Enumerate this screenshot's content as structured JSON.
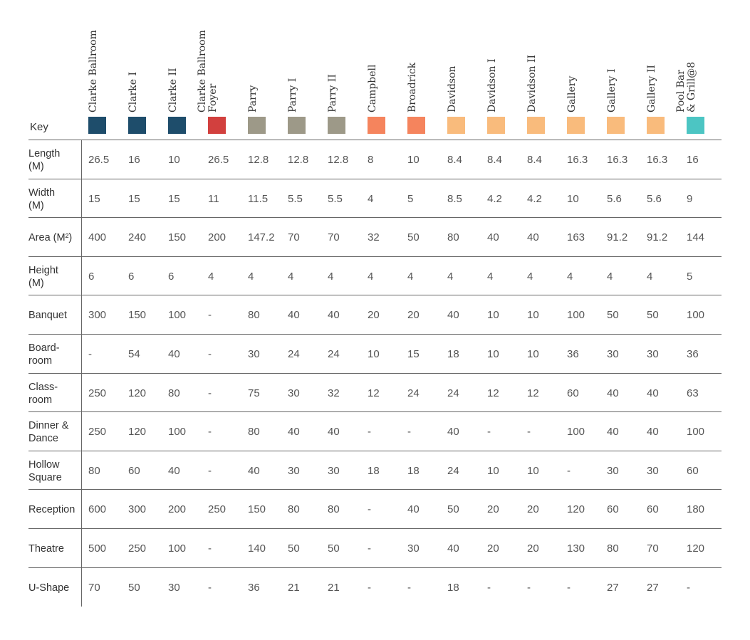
{
  "table": {
    "key_label": "Key",
    "columns": [
      {
        "name": "Clarke Ballroom",
        "color": "#1e4d6b"
      },
      {
        "name": "Clarke I",
        "color": "#1e4d6b"
      },
      {
        "name": "Clarke II",
        "color": "#1e4d6b"
      },
      {
        "name": "Clarke Ballroom\nFoyer",
        "color": "#d2403e"
      },
      {
        "name": "Parry",
        "color": "#9d9988"
      },
      {
        "name": "Parry I",
        "color": "#9d9988"
      },
      {
        "name": "Parry II",
        "color": "#9d9988"
      },
      {
        "name": "Campbell",
        "color": "#f5845d"
      },
      {
        "name": "Broadrick",
        "color": "#f5845d"
      },
      {
        "name": "Davidson",
        "color": "#f9bb7c"
      },
      {
        "name": "Davidson I",
        "color": "#f9bb7c"
      },
      {
        "name": "Davidson II",
        "color": "#f9bb7c"
      },
      {
        "name": "Gallery",
        "color": "#f9bb7c"
      },
      {
        "name": "Gallery I",
        "color": "#f9bb7c"
      },
      {
        "name": "Gallery II",
        "color": "#f9bb7c"
      },
      {
        "name": "Pool Bar\n& Grill@8",
        "color": "#4cc5c3"
      }
    ],
    "rows": [
      {
        "label": "Length\n(M)",
        "values": [
          "26.5",
          "16",
          "10",
          "26.5",
          "12.8",
          "12.8",
          "12.8",
          "8",
          "10",
          "8.4",
          "8.4",
          "8.4",
          "16.3",
          "16.3",
          "16.3",
          "16"
        ]
      },
      {
        "label": "Width\n(M)",
        "values": [
          "15",
          "15",
          "15",
          "11",
          "11.5",
          "5.5",
          "5.5",
          "4",
          "5",
          "8.5",
          "4.2",
          "4.2",
          "10",
          "5.6",
          "5.6",
          "9"
        ]
      },
      {
        "label": "Area (M²)",
        "values": [
          "400",
          "240",
          "150",
          "200",
          "147.2",
          "70",
          "70",
          "32",
          "50",
          "80",
          "40",
          "40",
          "163",
          "91.2",
          "91.2",
          "144"
        ]
      },
      {
        "label": "Height\n(M)",
        "values": [
          "6",
          "6",
          "6",
          "4",
          "4",
          "4",
          "4",
          "4",
          "4",
          "4",
          "4",
          "4",
          "4",
          "4",
          "4",
          "5"
        ]
      },
      {
        "label": "Banquet",
        "values": [
          "300",
          "150",
          "100",
          "-",
          "80",
          "40",
          "40",
          "20",
          "20",
          "40",
          "10",
          "10",
          "100",
          "50",
          "50",
          "100"
        ]
      },
      {
        "label": "Board-\nroom",
        "values": [
          "-",
          "54",
          "40",
          "-",
          "30",
          "24",
          "24",
          "10",
          "15",
          "18",
          "10",
          "10",
          "36",
          "30",
          "30",
          "36"
        ]
      },
      {
        "label": "Class-\nroom",
        "values": [
          "250",
          "120",
          "80",
          "-",
          "75",
          "30",
          "32",
          "12",
          "24",
          "24",
          "12",
          "12",
          "60",
          "40",
          "40",
          "63"
        ]
      },
      {
        "label": "Dinner &\nDance",
        "values": [
          "250",
          "120",
          "100",
          "-",
          "80",
          "40",
          "40",
          "-",
          "-",
          "40",
          "-",
          "-",
          "100",
          "40",
          "40",
          "100"
        ]
      },
      {
        "label": "Hollow\nSquare",
        "values": [
          "80",
          "60",
          "40",
          "-",
          "40",
          "30",
          "30",
          "18",
          "18",
          "24",
          "10",
          "10",
          "-",
          "30",
          "30",
          "60"
        ]
      },
      {
        "label": "Reception",
        "values": [
          "600",
          "300",
          "200",
          "250",
          "150",
          "80",
          "80",
          "-",
          "40",
          "50",
          "20",
          "20",
          "120",
          "60",
          "60",
          "180"
        ]
      },
      {
        "label": "Theatre",
        "values": [
          "500",
          "250",
          "100",
          "-",
          "140",
          "50",
          "50",
          "-",
          "30",
          "40",
          "20",
          "20",
          "130",
          "80",
          "70",
          "120"
        ]
      },
      {
        "label": "U-Shape",
        "values": [
          "70",
          "50",
          "30",
          "-",
          "36",
          "21",
          "21",
          "-",
          "-",
          "18",
          "-",
          "-",
          "-",
          "27",
          "27",
          "-"
        ]
      }
    ]
  }
}
